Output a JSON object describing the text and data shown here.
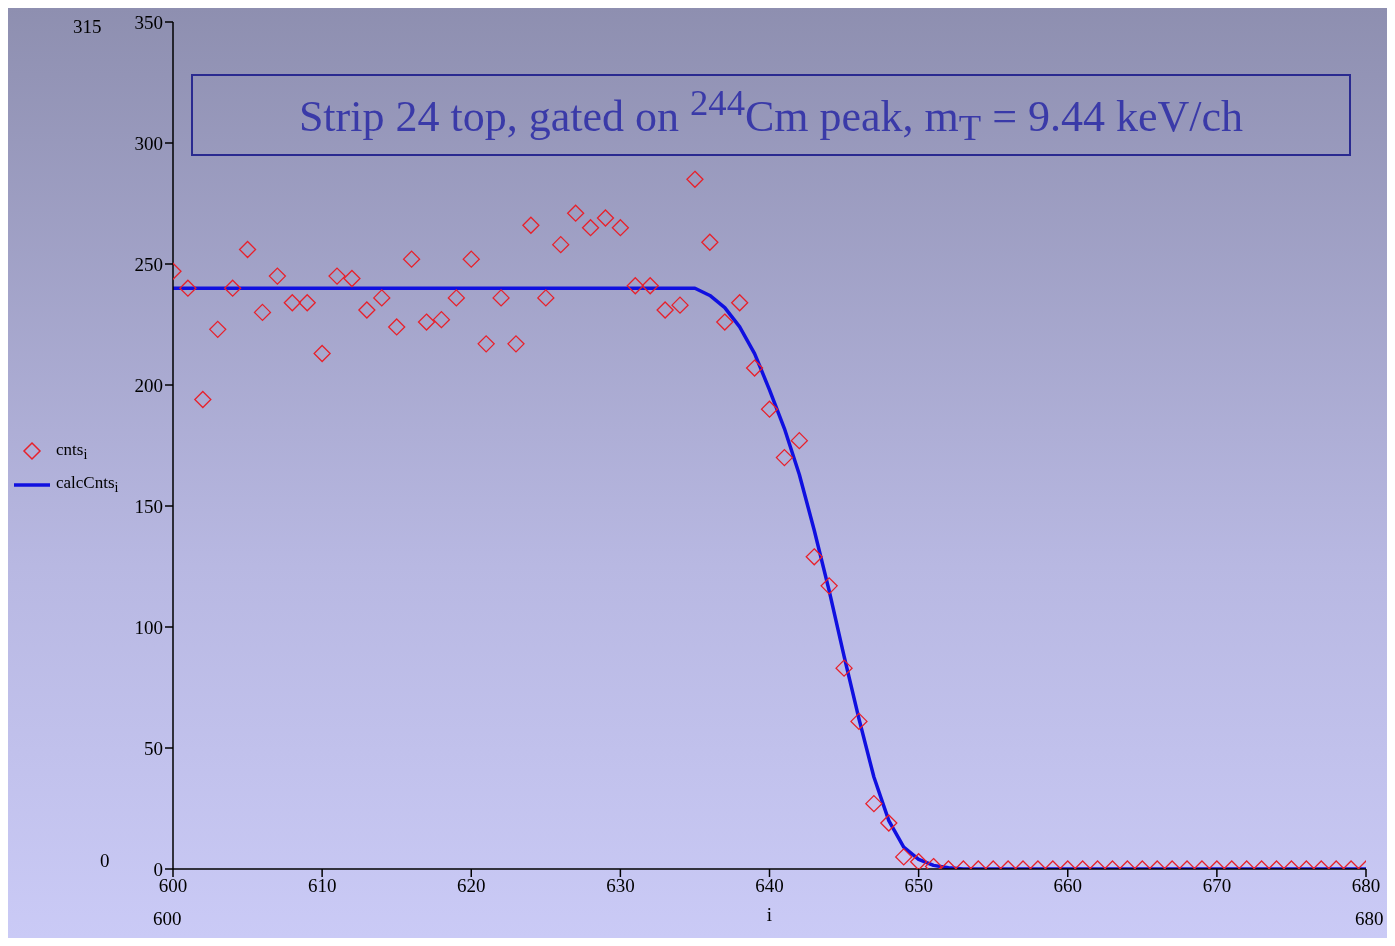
{
  "chart_data": {
    "type": "scatter",
    "title": "Strip 24 top, gated on $^{244}$Cm peak, m$_{T}$ = 9.44 keV/ch",
    "xlabel": "i",
    "xlim": [
      600,
      680
    ],
    "xticks": [
      600,
      610,
      620,
      630,
      640,
      650,
      660,
      670,
      680
    ],
    "ylim": [
      0,
      350
    ],
    "yticks": [
      0,
      50,
      100,
      150,
      200,
      250,
      300,
      350
    ],
    "legend": "left",
    "marker": "diamond",
    "annotations": [
      "315",
      "0",
      "600",
      "680"
    ],
    "series": [
      {
        "name": "cnts$_{i}$",
        "color": "#e8202a",
        "x": [
          600,
          601,
          602,
          603,
          604,
          605,
          606,
          607,
          608,
          609,
          610,
          611,
          612,
          613,
          614,
          615,
          616,
          617,
          618,
          619,
          620,
          621,
          622,
          623,
          624,
          625,
          626,
          627,
          628,
          629,
          630,
          631,
          632,
          633,
          634,
          635,
          636,
          637,
          638,
          639,
          640,
          641,
          642,
          643,
          644,
          645,
          646,
          647,
          648,
          649,
          650,
          651,
          652,
          653,
          654,
          655,
          656,
          657,
          658,
          659,
          660,
          661,
          662,
          663,
          664,
          665,
          666,
          667,
          668,
          669,
          670,
          671,
          672,
          673,
          674,
          675,
          676,
          677,
          678,
          679,
          680
        ],
        "values": [
          247,
          240,
          194,
          223,
          240,
          256,
          230,
          245,
          234,
          234,
          213,
          245,
          244,
          231,
          236,
          224,
          252,
          226,
          227,
          236,
          252,
          217,
          236,
          217,
          266,
          236,
          258,
          271,
          265,
          269,
          265,
          241,
          241,
          231,
          233,
          285,
          259,
          226,
          234,
          207,
          190,
          170,
          177,
          129,
          117,
          83,
          61,
          27,
          19,
          5,
          3,
          1,
          0,
          0,
          0,
          0,
          0,
          0,
          0,
          0,
          0,
          0,
          0,
          0,
          0,
          0,
          0,
          0,
          0,
          0,
          0,
          0,
          0,
          0,
          0,
          0,
          0,
          0,
          0,
          0,
          0
        ]
      },
      {
        "name": "calcCnts$_{i}$",
        "type": "line",
        "color": "#1010e0",
        "line_style": "solid",
        "marker": "none",
        "x": [
          600,
          635,
          636,
          637,
          638,
          639,
          640,
          641,
          642,
          643,
          644,
          645,
          646,
          647,
          648,
          649,
          650,
          651,
          652,
          653,
          680
        ],
        "values": [
          240,
          240,
          237,
          232,
          224,
          213,
          198,
          182,
          163,
          140,
          115,
          88,
          62,
          38,
          20,
          9,
          4,
          1.5,
          0.5,
          0,
          0
        ]
      }
    ]
  }
}
